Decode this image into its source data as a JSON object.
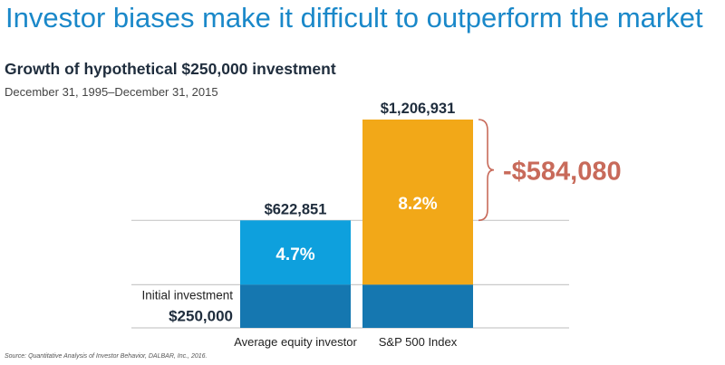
{
  "title": "Investor biases make it difficult to outperform the market",
  "subtitle": "Growth of hypothetical $250,000 investment",
  "date_range": "December 31, 1995–December 31, 2015",
  "source": "Source: Quantitative Analysis of Investor Behavior, DALBAR, Inc., 2016.",
  "colors": {
    "title": "#1a88c9",
    "initial_segment": "#1577b0",
    "investor_growth": "#0ea0dd",
    "sp500_growth": "#f2a818",
    "difference": "#c86a5a",
    "gridline": "#c9c9c9"
  },
  "chart_data": {
    "type": "bar",
    "stacked": true,
    "categories": [
      "Average equity investor",
      "S&P 500 Index"
    ],
    "initial_value": 250000,
    "ending_values": [
      622851,
      1206931
    ],
    "ending_value_labels": [
      "$622,851",
      "$1,206,931"
    ],
    "return_labels": [
      "4.7%",
      "8.2%"
    ],
    "initial_label": "Initial investment",
    "initial_value_label": "$250,000",
    "difference_value": -584080,
    "difference_label": "-$584,080",
    "ylim": [
      0,
      1206931
    ],
    "grid": false
  }
}
